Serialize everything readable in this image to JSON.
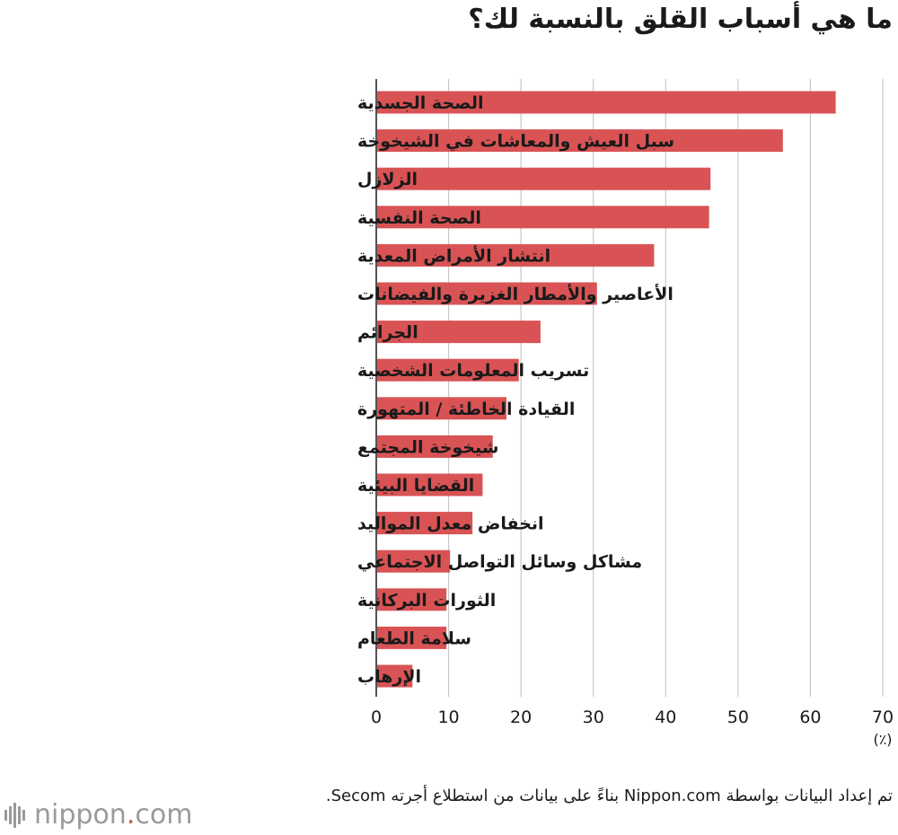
{
  "chart_data": {
    "type": "bar",
    "orientation": "horizontal",
    "title": "ما هي أسباب القلق بالنسبة لك؟",
    "categories": [
      "الصحة الجسدية",
      "سبل العيش والمعاشات في الشيخوخة",
      "الزلازل",
      "الصحة النفسية",
      "انتشار الأمراض المعدية",
      "الأعاصير والأمطار الغزيرة والفيضانات",
      "الجرائم",
      "تسريب المعلومات الشخصية",
      "القيادة الخاطئة / المتهورة",
      "شيخوخة المجتمع",
      "القضايا البيئية",
      "انخفاض معدل المواليد",
      "مشاكل وسائل التواصل الاجتماعي",
      "الثورات البركانية",
      "سلامة الطعام",
      "الإرهاب"
    ],
    "values": [
      63.5,
      56.2,
      46.2,
      46.0,
      38.4,
      30.5,
      22.7,
      19.7,
      18.0,
      16.1,
      14.7,
      13.3,
      10.2,
      9.7,
      9.7,
      5.0
    ],
    "xlim": [
      0,
      70
    ],
    "xticks": [
      "0",
      "10",
      "20",
      "30",
      "40",
      "50",
      "60",
      "70"
    ],
    "xunit": "(٪)",
    "grid": true,
    "bar_color": "#d95355",
    "grid_color": "#c8c8c8"
  },
  "source_text": "تم إعداد البيانات بواسطة Nippon.com بناءً على بيانات من استطلاع أجرته Secom.",
  "logo": {
    "name": "nippon",
    "dot": ".",
    "suffix": "com",
    "accent": "#d9534f"
  }
}
